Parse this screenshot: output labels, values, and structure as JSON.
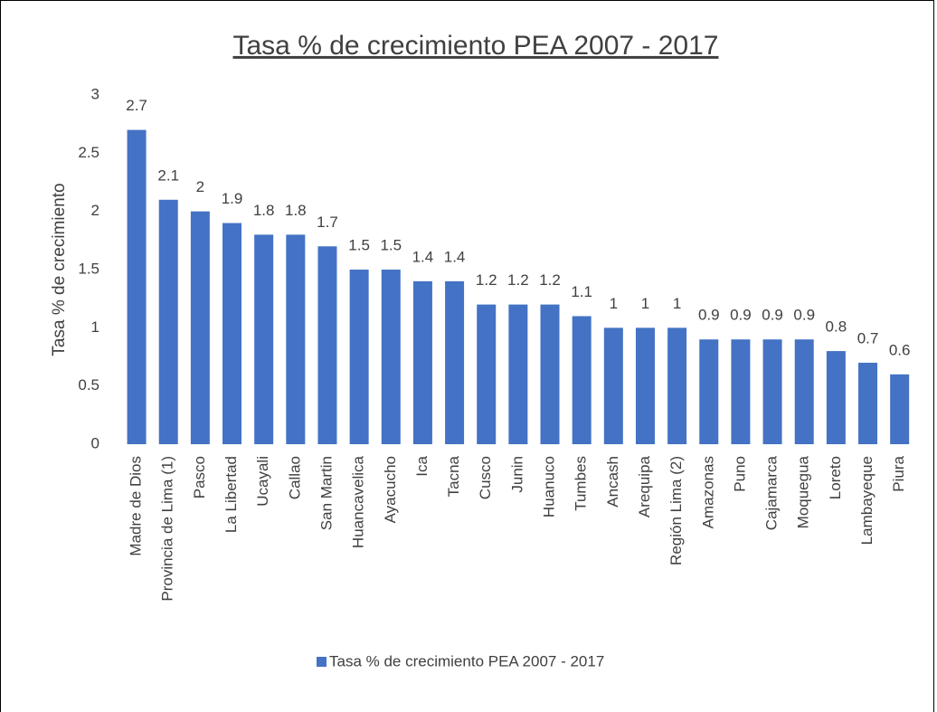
{
  "chart_data": {
    "type": "bar",
    "title": "Tasa % de crecimiento PEA 2007 - 2017",
    "y_label": "Tasa % de crecimiento",
    "categories": [
      "Madre de Dios",
      "Provincia de Lima (1)",
      "Pasco",
      "La Libertad",
      "Ucayali",
      "Callao",
      "San Martin",
      "Huancavelica",
      "Ayacucho",
      "Ica",
      "Tacna",
      "Cusco",
      "Junin",
      "Huanuco",
      "Tumbes",
      "Ancash",
      "Arequipa",
      "Región Lima (2)",
      "Amazonas",
      "Puno",
      "Cajamarca",
      "Moquegua",
      "Loreto",
      "Lambayeque",
      "Piura"
    ],
    "series": [
      {
        "name": "Tasa % de crecimiento PEA 2007 - 2017",
        "color": "#4472c4",
        "values": [
          2.7,
          2.1,
          2,
          1.9,
          1.8,
          1.8,
          1.7,
          1.5,
          1.5,
          1.4,
          1.4,
          1.2,
          1.2,
          1.2,
          1.1,
          1,
          1,
          1,
          0.9,
          0.9,
          0.9,
          0.9,
          0.8,
          0.7,
          0.6
        ]
      }
    ],
    "ylim": [
      0,
      3
    ],
    "yticks": [
      0,
      0.5,
      1,
      1.5,
      2,
      2.5,
      3
    ],
    "grid": false,
    "legend": "bottom"
  }
}
